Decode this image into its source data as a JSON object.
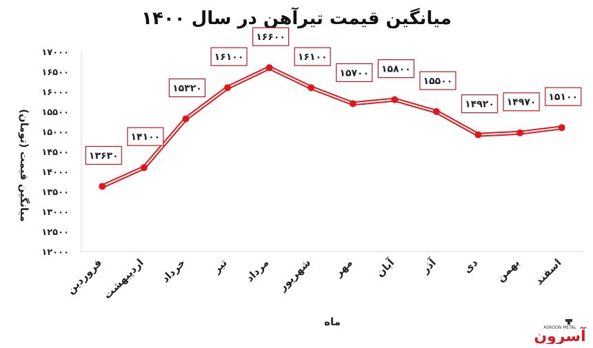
{
  "chart_data": {
    "type": "line",
    "title": "میانگین قیمت تیرآهن در سال ۱۴۰۰",
    "xlabel": "ماه",
    "ylabel": "میانگین قیمت (تومان)",
    "categories": [
      "فروردین",
      "اردیبهشت",
      "خرداد",
      "تیر",
      "مرداد",
      "شهریور",
      "مهر",
      "آبان",
      "آذر",
      "دی",
      "بهمن",
      "اسفند"
    ],
    "values": [
      13630,
      14100,
      15320,
      16100,
      16600,
      16100,
      15700,
      15800,
      15500,
      14920,
      14970,
      15100
    ],
    "data_labels": [
      "۱۳۶۳۰",
      "۱۴۱۰۰",
      "۱۵۳۲۰",
      "۱۶۱۰۰",
      "۱۶۶۰۰",
      "۱۶۱۰۰",
      "۱۵۷۰۰",
      "۱۵۸۰۰",
      "۱۵۵۰۰",
      "۱۴۹۲۰",
      "۱۴۹۷۰",
      "۱۵۱۰۰"
    ],
    "ylim": [
      12000,
      17000
    ],
    "yticks": [
      12000,
      12500,
      13000,
      13500,
      14000,
      14500,
      15000,
      15500,
      16000,
      16500,
      17000
    ],
    "ytick_labels": [
      "۱۲۰۰۰",
      "۱۲۵۰۰",
      "۱۳۰۰۰",
      "۱۳۵۰۰",
      "۱۴۰۰۰",
      "۱۴۵۰۰",
      "۱۵۰۰۰",
      "۱۵۵۰۰",
      "۱۶۰۰۰",
      "۱۶۵۰۰",
      "۱۷۰۰۰"
    ],
    "grid": false,
    "line_color": "#e0161c",
    "label_border_color": "#c0161c"
  },
  "logo": {
    "text": "آسرون",
    "subtext": "ASROON METAL"
  }
}
